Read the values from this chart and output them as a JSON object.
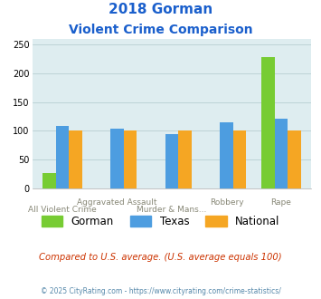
{
  "title_line1": "2018 Gorman",
  "title_line2": "Violent Crime Comparison",
  "gorman": [
    27,
    0,
    0,
    0,
    228
  ],
  "texas": [
    108,
    104,
    94,
    115,
    121
  ],
  "national": [
    100,
    100,
    100,
    100,
    100
  ],
  "gorman_color": "#77cc33",
  "texas_color": "#4d9de0",
  "national_color": "#f5a623",
  "bg_color": "#deedf0",
  "ylim": [
    0,
    260
  ],
  "yticks": [
    0,
    50,
    100,
    150,
    200,
    250
  ],
  "title_color": "#1a5fcc",
  "footer_text": "Compared to U.S. average. (U.S. average equals 100)",
  "credit_text": "© 2025 CityRating.com - https://www.cityrating.com/crime-statistics/",
  "legend_labels": [
    "Gorman",
    "Texas",
    "National"
  ],
  "xlabel_row1": [
    "All Violent Crime",
    "Aggravated Assault",
    "Murder & Mans...",
    "Robbery",
    "Rape"
  ],
  "xlabel_row2": [
    "",
    "",
    "",
    "",
    ""
  ],
  "xtick_top": [
    "",
    "Aggravated Assault",
    "",
    "Robbery",
    "Rape"
  ],
  "xtick_bottom": [
    "All Violent Crime",
    "",
    "Murder & Mans...",
    "",
    ""
  ]
}
